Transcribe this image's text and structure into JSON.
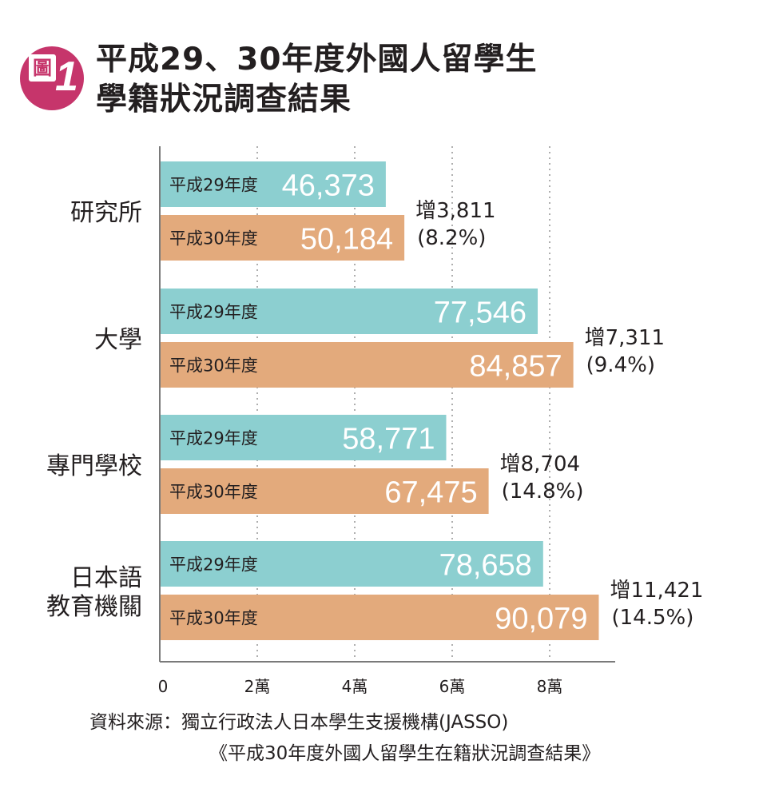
{
  "figure": {
    "badge_char": "圖",
    "badge_number": "1",
    "title_line1": "平成29、30年度外國人留學生",
    "title_line2": "學籍狀況調查結果",
    "source_line1": "資料來源：獨立行政法人日本學生支援機構(JASSO)",
    "source_line2": "《平成30年度外國人留學生在籍狀況調查結果》"
  },
  "colors": {
    "series_2017": "#8ccfd0",
    "series_2018": "#e3aa7c",
    "badge": "#c6356b",
    "text": "#231f20"
  },
  "chart_data": {
    "type": "bar",
    "orientation": "horizontal",
    "categories": [
      [
        "研究所"
      ],
      [
        "大學"
      ],
      [
        "專門學校"
      ],
      [
        "日本語",
        "教育機關"
      ]
    ],
    "series": [
      {
        "name": "平成29年度",
        "values": [
          46373,
          77546,
          58771,
          78658
        ],
        "labels": [
          "46,373",
          "77,546",
          "58,771",
          "78,658"
        ]
      },
      {
        "name": "平成30年度",
        "values": [
          50184,
          84857,
          67475,
          90079
        ],
        "labels": [
          "50,184",
          "84,857",
          "67,475",
          "90,079"
        ]
      }
    ],
    "annotations": [
      {
        "increase": "增3,811",
        "percent": "(8.2%)"
      },
      {
        "increase": "增7,311",
        "percent": "(9.4%)"
      },
      {
        "increase": "增8,704",
        "percent": "(14.8%)"
      },
      {
        "increase": "增11,421",
        "percent": "(14.5%)"
      }
    ],
    "x_ticks": [
      {
        "value": 0,
        "label": "0"
      },
      {
        "value": 20000,
        "label": "2萬"
      },
      {
        "value": 40000,
        "label": "4萬"
      },
      {
        "value": 60000,
        "label": "6萬"
      },
      {
        "value": 80000,
        "label": "8萬"
      }
    ],
    "xlim": [
      0,
      94000
    ],
    "grid": true,
    "legend": "none (series names printed inside bars)"
  }
}
